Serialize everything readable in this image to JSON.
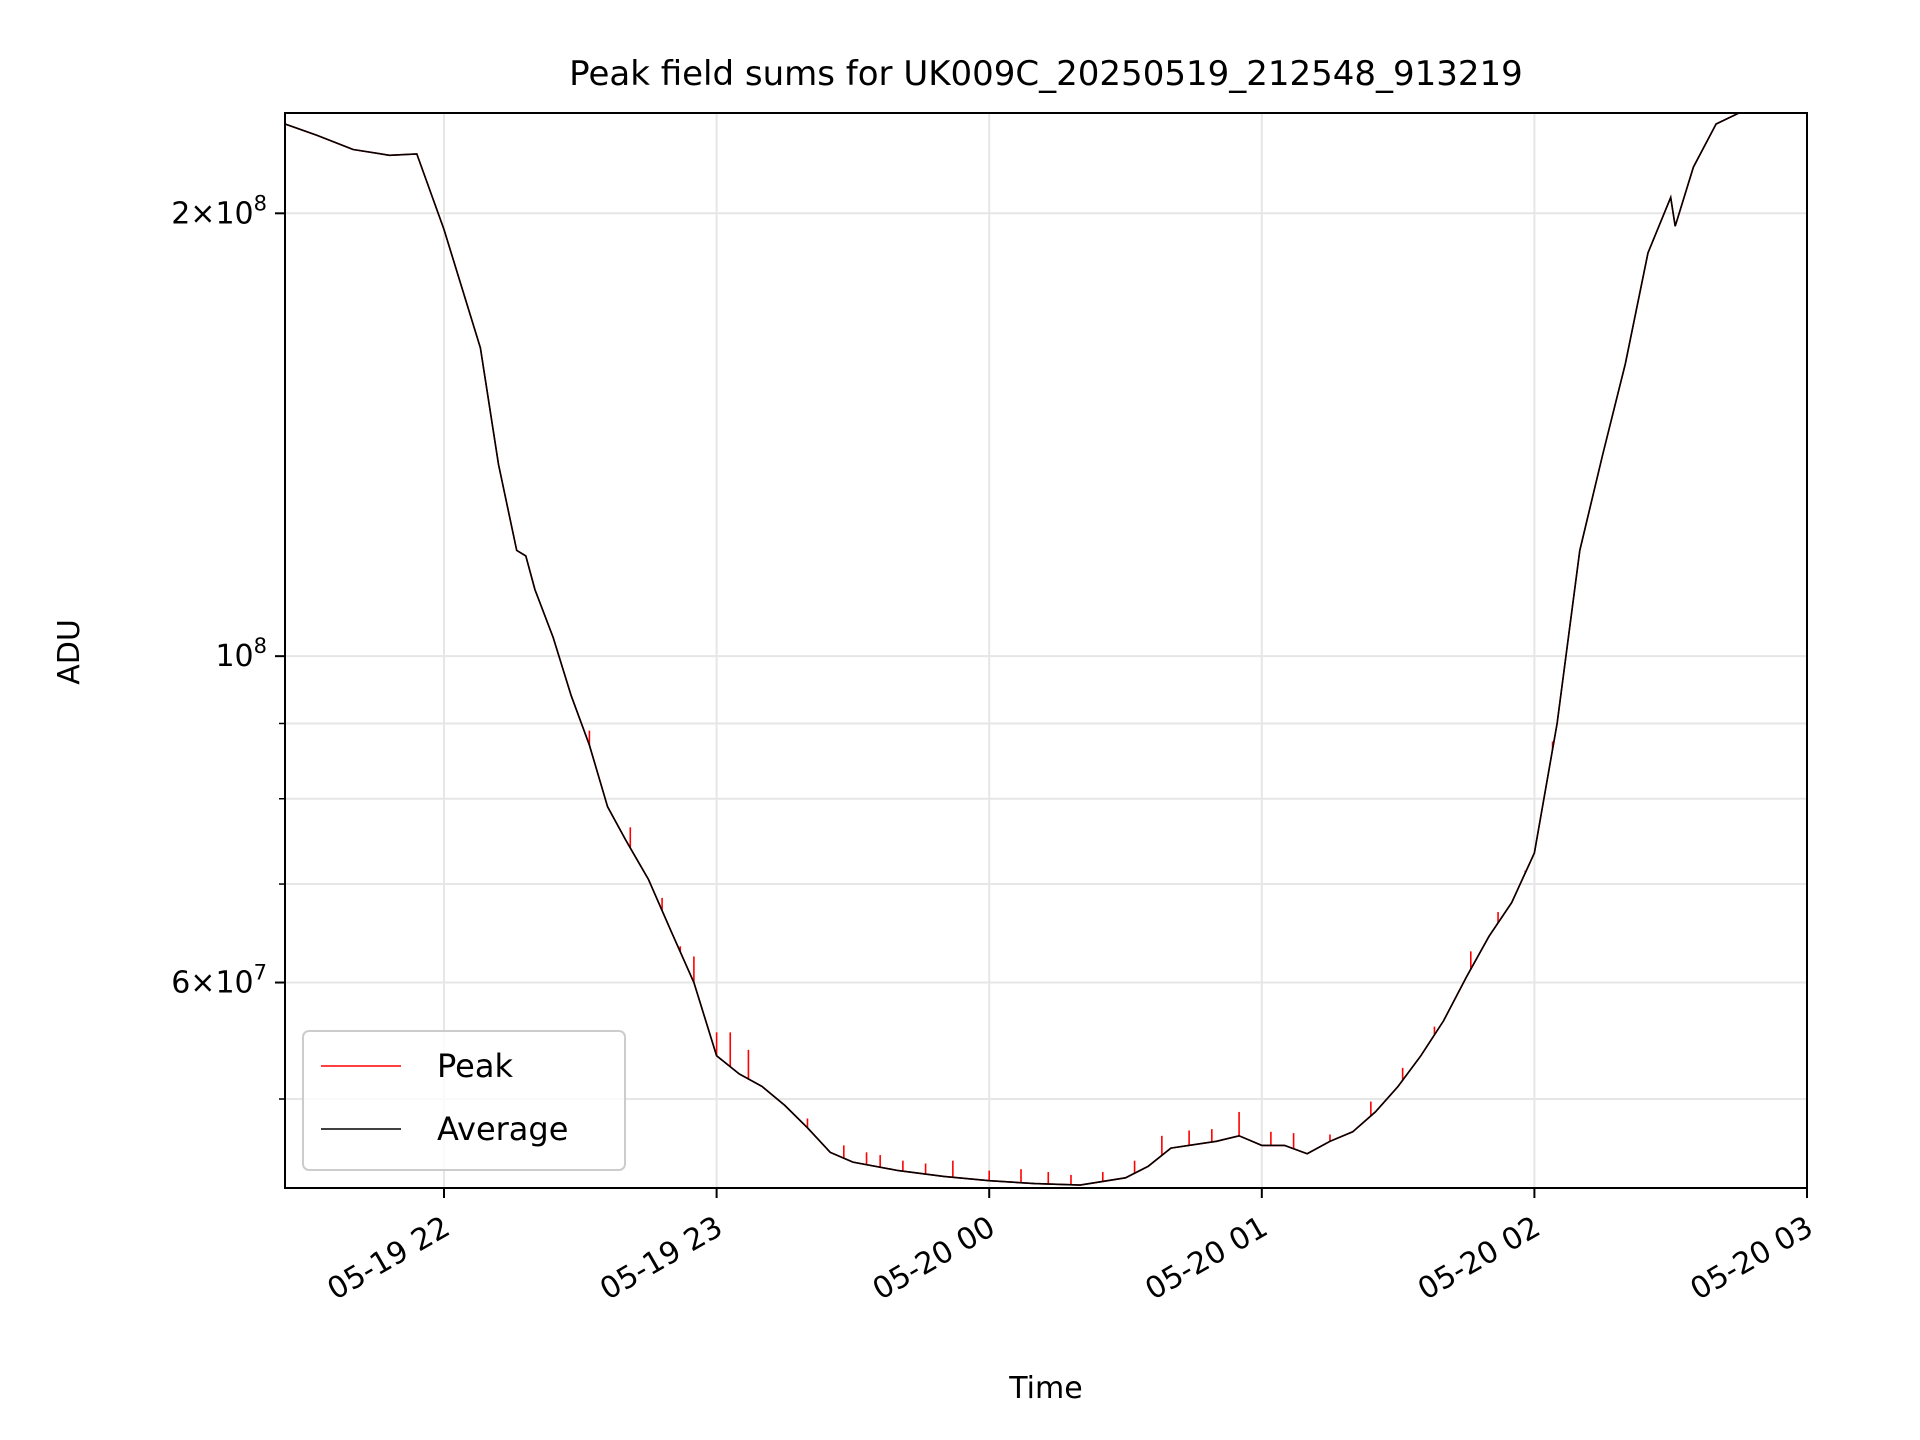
{
  "chart_data": {
    "type": "line",
    "title": "Peak field sums for UK009C_20250519_212548_913219",
    "xlabel": "Time",
    "ylabel": "ADU",
    "yscale": "log",
    "grid": true,
    "legend_placement": "lower-left",
    "xlim": [
      "2025-05-19 21:25",
      "2025-05-20 03:00"
    ],
    "ylim": [
      43500000,
      234000000
    ],
    "x_ticks": [
      "05-19 22",
      "05-19 23",
      "05-20 00",
      "05-20 01",
      "05-20 02",
      "05-20 03"
    ],
    "x_tick_times": [
      "2025-05-19 22:00",
      "2025-05-19 23:00",
      "2025-05-20 00:00",
      "2025-05-20 01:00",
      "2025-05-20 02:00",
      "2025-05-20 03:00"
    ],
    "y_major_ticks": [
      {
        "value": 60000000,
        "label_mantissa": "6",
        "label_exp": "7",
        "label_base": "10"
      },
      {
        "value": 100000000,
        "label_mantissa": "",
        "label_exp": "8",
        "label_base": "10"
      },
      {
        "value": 200000000,
        "label_mantissa": "2",
        "label_exp": "8",
        "label_base": "10"
      }
    ],
    "y_minor_ticks": [
      50000000,
      70000000,
      80000000,
      90000000
    ],
    "series": [
      {
        "name": "Average",
        "color": "#000000",
        "points": [
          [
            "2025-05-19 21:25",
            230000000
          ],
          [
            "2025-05-19 21:32",
            226000000
          ],
          [
            "2025-05-19 21:40",
            221000000
          ],
          [
            "2025-05-19 21:48",
            219000000
          ],
          [
            "2025-05-19 21:54",
            219500000
          ],
          [
            "2025-05-19 22:00",
            195000000
          ],
          [
            "2025-05-19 22:08",
            162000000
          ],
          [
            "2025-05-19 22:12",
            135000000
          ],
          [
            "2025-05-19 22:16",
            118000000
          ],
          [
            "2025-05-19 22:18",
            117000000
          ],
          [
            "2025-05-19 22:20",
            111000000
          ],
          [
            "2025-05-19 22:24",
            103000000
          ],
          [
            "2025-05-19 22:28",
            94000000
          ],
          [
            "2025-05-19 22:32",
            87000000
          ],
          [
            "2025-05-19 22:36",
            79000000
          ],
          [
            "2025-05-19 22:40",
            75000000
          ],
          [
            "2025-05-19 22:45",
            70500000
          ],
          [
            "2025-05-19 22:50",
            65000000
          ],
          [
            "2025-05-19 22:55",
            60000000
          ],
          [
            "2025-05-19 23:00",
            53500000
          ],
          [
            "2025-05-19 23:05",
            52000000
          ],
          [
            "2025-05-19 23:10",
            51000000
          ],
          [
            "2025-05-19 23:15",
            49500000
          ],
          [
            "2025-05-19 23:20",
            47800000
          ],
          [
            "2025-05-19 23:25",
            46000000
          ],
          [
            "2025-05-19 23:30",
            45300000
          ],
          [
            "2025-05-19 23:40",
            44700000
          ],
          [
            "2025-05-19 23:50",
            44300000
          ],
          [
            "2025-05-20 00:00",
            44000000
          ],
          [
            "2025-05-20 00:10",
            43800000
          ],
          [
            "2025-05-20 00:20",
            43700000
          ],
          [
            "2025-05-20 00:30",
            44200000
          ],
          [
            "2025-05-20 00:35",
            45000000
          ],
          [
            "2025-05-20 00:40",
            46300000
          ],
          [
            "2025-05-20 00:50",
            46800000
          ],
          [
            "2025-05-20 00:55",
            47200000
          ],
          [
            "2025-05-20 01:00",
            46500000
          ],
          [
            "2025-05-20 01:05",
            46500000
          ],
          [
            "2025-05-20 01:10",
            45900000
          ],
          [
            "2025-05-20 01:15",
            46800000
          ],
          [
            "2025-05-20 01:20",
            47500000
          ],
          [
            "2025-05-20 01:25",
            49000000
          ],
          [
            "2025-05-20 01:30",
            51000000
          ],
          [
            "2025-05-20 01:35",
            53500000
          ],
          [
            "2025-05-20 01:40",
            56500000
          ],
          [
            "2025-05-20 01:45",
            60500000
          ],
          [
            "2025-05-20 01:50",
            64500000
          ],
          [
            "2025-05-20 01:55",
            68000000
          ],
          [
            "2025-05-20 02:00",
            73500000
          ],
          [
            "2025-05-20 02:05",
            90000000
          ],
          [
            "2025-05-20 02:10",
            118000000
          ],
          [
            "2025-05-20 02:15",
            137000000
          ],
          [
            "2025-05-20 02:20",
            158000000
          ],
          [
            "2025-05-20 02:25",
            188000000
          ],
          [
            "2025-05-20 02:30",
            205000000
          ],
          [
            "2025-05-20 02:31",
            196000000
          ],
          [
            "2025-05-20 02:35",
            215000000
          ],
          [
            "2025-05-20 02:40",
            230000000
          ],
          [
            "2025-05-20 02:45",
            234000000
          ],
          [
            "2025-05-20 03:00",
            234000000
          ]
        ]
      },
      {
        "name": "Peak",
        "color": "#ff0000",
        "spikes": [
          [
            "2025-05-19 22:32",
            89000000
          ],
          [
            "2025-05-19 22:41",
            76500000
          ],
          [
            "2025-05-19 22:48",
            68500000
          ],
          [
            "2025-05-19 22:52",
            63500000
          ],
          [
            "2025-05-19 22:55",
            62500000
          ],
          [
            "2025-05-19 23:00",
            55500000
          ],
          [
            "2025-05-19 23:03",
            55500000
          ],
          [
            "2025-05-19 23:07",
            54000000
          ],
          [
            "2025-05-19 23:20",
            48500000
          ],
          [
            "2025-05-19 23:28",
            46500000
          ],
          [
            "2025-05-19 23:33",
            46000000
          ],
          [
            "2025-05-19 23:36",
            45800000
          ],
          [
            "2025-05-19 23:41",
            45400000
          ],
          [
            "2025-05-19 23:46",
            45200000
          ],
          [
            "2025-05-19 23:52",
            45400000
          ],
          [
            "2025-05-20 00:00",
            44700000
          ],
          [
            "2025-05-20 00:07",
            44800000
          ],
          [
            "2025-05-20 00:13",
            44600000
          ],
          [
            "2025-05-20 00:18",
            44400000
          ],
          [
            "2025-05-20 00:25",
            44600000
          ],
          [
            "2025-05-20 00:32",
            45400000
          ],
          [
            "2025-05-20 00:38",
            47200000
          ],
          [
            "2025-05-20 00:44",
            47600000
          ],
          [
            "2025-05-20 00:49",
            47700000
          ],
          [
            "2025-05-20 00:55",
            49000000
          ],
          [
            "2025-05-20 01:02",
            47500000
          ],
          [
            "2025-05-20 01:07",
            47400000
          ],
          [
            "2025-05-20 01:15",
            47300000
          ],
          [
            "2025-05-20 01:24",
            49800000
          ],
          [
            "2025-05-20 01:31",
            52500000
          ],
          [
            "2025-05-20 01:38",
            56000000
          ],
          [
            "2025-05-20 01:46",
            63000000
          ],
          [
            "2025-05-20 01:52",
            67000000
          ],
          [
            "2025-05-20 01:58",
            71500000
          ],
          [
            "2025-05-20 02:04",
            87500000
          ]
        ]
      }
    ]
  }
}
